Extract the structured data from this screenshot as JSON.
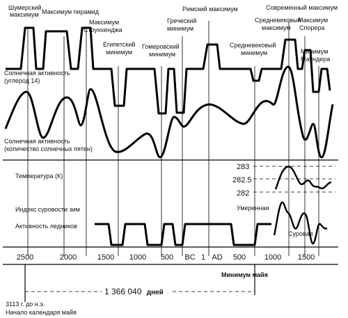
{
  "period_labels": {
    "sumerian": [
      "Шумерский",
      "максимум"
    ],
    "pyramid": "Максимум пирамид",
    "stonehenge": [
      "Максимум",
      "Стоунхенджа"
    ],
    "egyptian": [
      "Египетский",
      "минимум"
    ],
    "homeric": [
      "Гомеровский",
      "минимум"
    ],
    "greek": [
      "Греческий",
      "минимум"
    ],
    "roman": "Римский максимум",
    "medieval_min": [
      "Средневековый",
      "минимум"
    ],
    "modern": "Современный максимум",
    "medieval_max": [
      "Средневековый",
      "максимум"
    ],
    "sporer": [
      "Максимум",
      "Спорера"
    ],
    "maunder": [
      "Минимум",
      "Маундера"
    ]
  },
  "row_labels": {
    "solar_c14": [
      "Солнечная активность",
      "(углерод 14)"
    ],
    "solar_spots": [
      "Солнечная активность",
      "(количество солнечных пятен)"
    ],
    "temperature": "Температура (К)",
    "winter": "Индекс суровости зим",
    "glaciers": "Активность ледников"
  },
  "temperature_ticks": [
    "283",
    "282.5",
    "282"
  ],
  "winter_labels": {
    "moderate": "Умеренная",
    "severe": "Суровая"
  },
  "axis_ticks": [
    "2500",
    "2000",
    "1500",
    "1000",
    "500",
    "BC",
    "1",
    "AD",
    "500",
    "1000",
    "1500"
  ],
  "maya_minimum": "Минимум майя",
  "days_label": "1 366 040",
  "days_unit": "дней",
  "footer": [
    "3113 г. до н.э.",
    "Начало календаря майя"
  ]
}
